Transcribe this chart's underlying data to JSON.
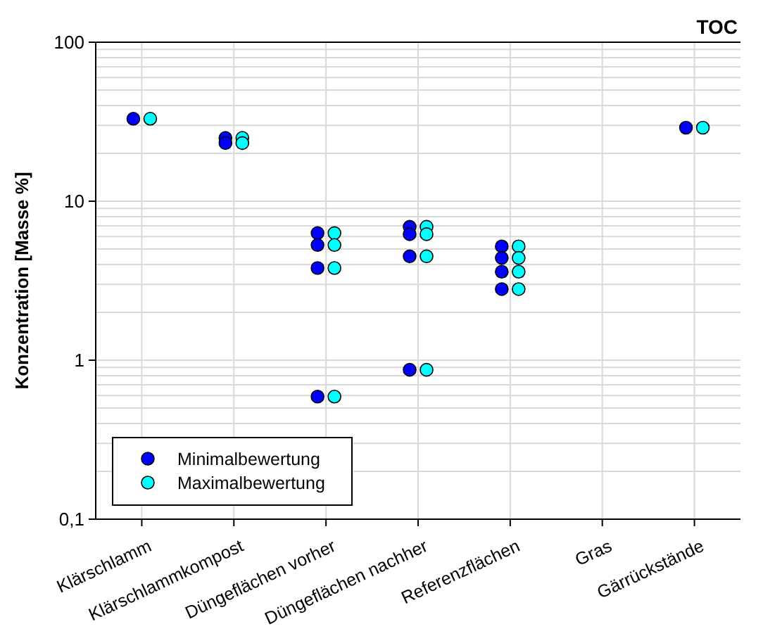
{
  "chart_data": {
    "type": "scatter",
    "title": "TOC",
    "ylabel": "Konzentration [Masse %]",
    "categories": [
      "Klärschlamm",
      "Klärschlammkompost",
      "Düngeflächen vorher",
      "Düngeflächen nachher",
      "Referenzflächen",
      "Gras",
      "Gärrückstände"
    ],
    "log": "y",
    "ylim": [
      0.1,
      100
    ],
    "yticks": [
      {
        "value": 0.1,
        "label": "0,1"
      },
      {
        "value": 0.2,
        "label": null
      },
      {
        "value": 0.3,
        "label": null
      },
      {
        "value": 0.4,
        "label": null
      },
      {
        "value": 0.5,
        "label": null
      },
      {
        "value": 0.6,
        "label": null
      },
      {
        "value": 0.7,
        "label": null
      },
      {
        "value": 0.8,
        "label": null
      },
      {
        "value": 0.9,
        "label": null
      },
      1,
      {
        "value": 2,
        "label": null
      },
      {
        "value": 3,
        "label": null
      },
      {
        "value": 4,
        "label": null
      },
      {
        "value": 5,
        "label": null
      },
      {
        "value": 6,
        "label": null
      },
      {
        "value": 7,
        "label": null
      },
      {
        "value": 8,
        "label": null
      },
      {
        "value": 9,
        "label": null
      },
      10,
      {
        "value": 20,
        "label": null
      },
      {
        "value": 30,
        "label": null
      },
      {
        "value": 40,
        "label": null
      },
      {
        "value": 50,
        "label": null
      },
      {
        "value": 60,
        "label": null
      },
      {
        "value": 70,
        "label": null
      },
      {
        "value": 80,
        "label": null
      },
      {
        "value": 90,
        "label": null
      },
      100
    ],
    "grid": true,
    "legend": "bottom left",
    "marker": "circle",
    "series": [
      {
        "name": "Minimalbewertung",
        "color": "#0000ff",
        "x": [
          "Klärschlamm",
          "Klärschlammkompost",
          "Klärschlammkompost",
          "Düngeflächen vorher",
          "Düngeflächen vorher",
          "Düngeflächen vorher",
          "Düngeflächen vorher",
          "Düngeflächen nachher",
          "Düngeflächen nachher",
          "Düngeflächen nachher",
          "Düngeflächen nachher",
          "Referenzflächen",
          "Referenzflächen",
          "Referenzflächen",
          "Referenzflächen",
          "Gärrückstände"
        ],
        "values": [
          33,
          25,
          23.2,
          6.3,
          5.3,
          3.8,
          0.59,
          6.9,
          6.2,
          4.5,
          0.87,
          5.2,
          4.4,
          3.6,
          2.8,
          29
        ]
      },
      {
        "name": "Maximalbewertung",
        "color": "#00ffff",
        "x": [
          "Klärschlamm",
          "Klärschlammkompost",
          "Klärschlammkompost",
          "Düngeflächen vorher",
          "Düngeflächen vorher",
          "Düngeflächen vorher",
          "Düngeflächen vorher",
          "Düngeflächen nachher",
          "Düngeflächen nachher",
          "Düngeflächen nachher",
          "Düngeflächen nachher",
          "Referenzflächen",
          "Referenzflächen",
          "Referenzflächen",
          "Referenzflächen",
          "Gärrückstände"
        ],
        "values": [
          33,
          25,
          23.2,
          6.3,
          5.3,
          3.8,
          0.59,
          6.9,
          6.2,
          4.5,
          0.87,
          5.2,
          4.4,
          3.6,
          2.8,
          29
        ]
      }
    ]
  }
}
